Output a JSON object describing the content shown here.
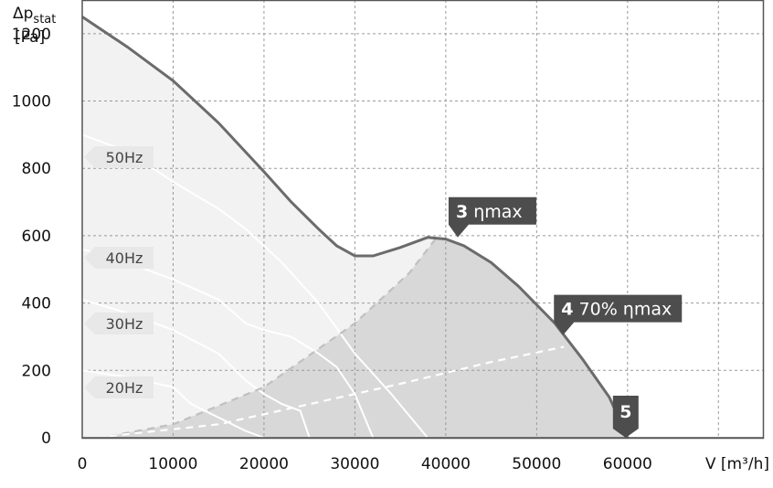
{
  "chart_data": {
    "type": "line",
    "ylabel_main": "Δp",
    "ylabel_sub": "stat",
    "ylabel_unit": "[Pa]",
    "xlabel": "V [m³/h]",
    "xlim": [
      0,
      75000
    ],
    "ylim": [
      0,
      1300
    ],
    "grid": true,
    "x_ticks": [
      0,
      10000,
      20000,
      30000,
      40000,
      50000,
      60000
    ],
    "y_ticks": [
      0,
      200,
      400,
      600,
      800,
      1000,
      1200
    ],
    "max_curve": [
      [
        0,
        1250
      ],
      [
        5000,
        1160
      ],
      [
        10000,
        1060
      ],
      [
        15000,
        935
      ],
      [
        20000,
        790
      ],
      [
        23000,
        700
      ],
      [
        26000,
        620
      ],
      [
        28000,
        570
      ],
      [
        30000,
        540
      ],
      [
        32000,
        540
      ],
      [
        35000,
        565
      ],
      [
        38000,
        595
      ],
      [
        40000,
        590
      ],
      [
        42000,
        570
      ],
      [
        45000,
        520
      ],
      [
        48000,
        450
      ],
      [
        52000,
        340
      ],
      [
        55000,
        235
      ],
      [
        58000,
        120
      ],
      [
        60000,
        0
      ]
    ],
    "freq_curves": [
      {
        "label": "50Hz",
        "points": [
          [
            0,
            900
          ],
          [
            5000,
            850
          ],
          [
            10000,
            760
          ],
          [
            15000,
            680
          ],
          [
            18000,
            620
          ],
          [
            22000,
            520
          ],
          [
            26000,
            400
          ],
          [
            30000,
            250
          ],
          [
            34000,
            130
          ],
          [
            38000,
            0
          ]
        ]
      },
      {
        "label": "40Hz",
        "points": [
          [
            0,
            560
          ],
          [
            5000,
            520
          ],
          [
            10000,
            470
          ],
          [
            15000,
            410
          ],
          [
            18000,
            340
          ],
          [
            20000,
            320
          ],
          [
            23000,
            300
          ],
          [
            26000,
            250
          ],
          [
            28000,
            210
          ],
          [
            30000,
            130
          ],
          [
            32000,
            0
          ]
        ]
      },
      {
        "label": "30Hz",
        "points": [
          [
            0,
            410
          ],
          [
            5000,
            370
          ],
          [
            10000,
            320
          ],
          [
            15000,
            250
          ],
          [
            18000,
            170
          ],
          [
            20000,
            130
          ],
          [
            22000,
            100
          ],
          [
            24000,
            80
          ],
          [
            25000,
            0
          ]
        ]
      },
      {
        "label": "20Hz",
        "points": [
          [
            0,
            200
          ],
          [
            5000,
            180
          ],
          [
            10000,
            150
          ],
          [
            12000,
            100
          ],
          [
            15000,
            60
          ],
          [
            18000,
            20
          ],
          [
            20000,
            0
          ]
        ]
      }
    ],
    "op_curves": [
      {
        "label": "3 ηmax",
        "points": [
          [
            3000,
            5
          ],
          [
            10000,
            40
          ],
          [
            20000,
            150
          ],
          [
            30000,
            340
          ],
          [
            36000,
            490
          ],
          [
            39000,
            595
          ]
        ]
      },
      {
        "label": "4 70% ηmax",
        "points": [
          [
            3000,
            5
          ],
          [
            15000,
            40
          ],
          [
            25000,
            100
          ],
          [
            35000,
            160
          ],
          [
            45000,
            225
          ],
          [
            53000,
            270
          ]
        ]
      }
    ],
    "markers": [
      {
        "num": "3",
        "text": " ηmax",
        "x": 38500,
        "y": 595
      },
      {
        "num": "4",
        "text": " 70% ηmax",
        "x": 51500,
        "y": 305
      },
      {
        "num": "5",
        "text": "",
        "x": 59800,
        "y": 0
      }
    ],
    "colors": {
      "grid": "#9a9a9a",
      "curve": "#6b6b6b",
      "fill_light": "#f2f2f2",
      "fill_dark": "#d8d8d8",
      "op_curve": "#ffffff",
      "badge": "#4d4d4d",
      "hz_badge": "#e8e8e8"
    }
  }
}
